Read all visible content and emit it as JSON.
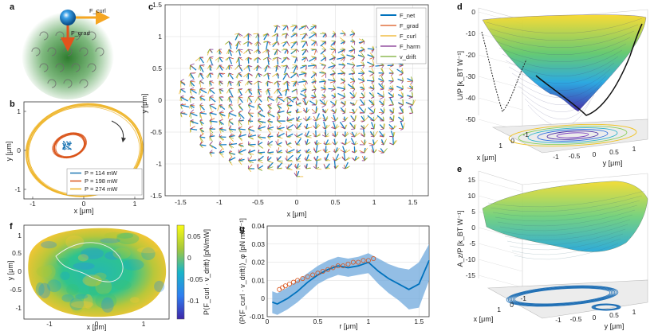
{
  "panels": {
    "a": {
      "label": "a",
      "force_labels": [
        "F_curl",
        "F_grad"
      ]
    },
    "b": {
      "label": "b",
      "xlabel": "x [μm]",
      "ylabel": "y [μm]",
      "xticks": [
        "-1",
        "0",
        "1"
      ],
      "yticks": [
        "1",
        "0",
        "-1"
      ],
      "legend": [
        {
          "text": "P = 114 mW",
          "color": "#1f77b4"
        },
        {
          "text": "P = 198 mW",
          "color": "#d95319"
        },
        {
          "text": "P = 274 mW",
          "color": "#edb120"
        }
      ]
    },
    "c": {
      "label": "c",
      "xlabel": "x [μm]",
      "ylabel": "y [μm]",
      "xticks": [
        "-1.5",
        "-1",
        "-0.5",
        "0",
        "0.5",
        "1",
        "1.5"
      ],
      "yticks": [
        "1.5",
        "1",
        "0.5",
        "0",
        "-0.5",
        "-1",
        "-1.5"
      ],
      "legend": [
        {
          "text": "F_net",
          "color": "#0072bd"
        },
        {
          "text": "F_grad",
          "color": "#d95319"
        },
        {
          "text": "F_curl",
          "color": "#edb120"
        },
        {
          "text": "F_harm",
          "color": "#7e2f8e"
        },
        {
          "text": "v_drift",
          "color": "#77ac30"
        }
      ]
    },
    "d": {
      "label": "d",
      "zlabel": "U/P [k_BT W⁻¹]",
      "zticks": [
        "0",
        "-10",
        "-20",
        "-30",
        "-40",
        "-50"
      ],
      "xlabel": "x [μm]",
      "ylabel": "y [μm]",
      "xticks": [
        "1",
        "0",
        "-1"
      ],
      "yticks": [
        "-1",
        "-0.5",
        "0",
        "0.5",
        "1"
      ]
    },
    "e": {
      "label": "e",
      "zlabel": "A_z/P [k_BT W⁻¹]",
      "zticks": [
        "15",
        "10",
        "5",
        "0",
        "-5",
        "-10",
        "-15"
      ],
      "xlabel": "x [μm]",
      "ylabel": "y [μm]",
      "xticks": [
        "1",
        "0",
        "-1"
      ],
      "yticks": [
        "-1",
        "-0.5",
        "0",
        "0.5",
        "1"
      ]
    },
    "f": {
      "label": "f",
      "xlabel": "x [μm]",
      "ylabel": "y [μm]",
      "xticks": [
        "-1",
        "0",
        "1"
      ],
      "yticks": [
        "1",
        "0.5",
        "0",
        "-0.5",
        "-1"
      ],
      "cbar_ticks": [
        "0.05",
        "0",
        "-0.05",
        "-0.1"
      ],
      "cbar_label": "P⟨F_curl · v_drift⟩ [pN/mW]"
    },
    "g": {
      "label": "g",
      "xlabel": "r [μm]",
      "ylabel": "⟨P⟨F_curl · v_drift⟩⟩_φ [pN mW⁻¹]",
      "xticks": [
        "0",
        "0.5",
        "1",
        "1.5"
      ],
      "yticks": [
        "0.04",
        "0.03",
        "0.02",
        "0.01",
        "0",
        "-0.01"
      ]
    }
  },
  "chart_data": [
    {
      "type": "line",
      "panel": "g",
      "title": "",
      "xlabel": "r [μm]",
      "ylabel": "⟨P⟨F_curl · v_drift⟩⟩_φ [pN mW⁻¹]",
      "xlim": [
        0,
        1.6
      ],
      "ylim": [
        -0.01,
        0.04
      ],
      "series": [
        {
          "name": "mean",
          "color": "#0072bd",
          "x": [
            0.05,
            0.1,
            0.2,
            0.3,
            0.4,
            0.5,
            0.6,
            0.7,
            0.8,
            0.9,
            1.0,
            1.1,
            1.2,
            1.3,
            1.4,
            1.5,
            1.6
          ],
          "values": [
            -0.002,
            -0.003,
            0.0,
            0.004,
            0.009,
            0.013,
            0.016,
            0.018,
            0.017,
            0.018,
            0.02,
            0.015,
            0.011,
            0.008,
            0.005,
            0.008,
            0.021
          ]
        },
        {
          "name": "band_upper",
          "color": "#6fa8dc",
          "x": [
            0.05,
            0.1,
            0.2,
            0.3,
            0.4,
            0.5,
            0.6,
            0.7,
            0.8,
            0.9,
            1.0,
            1.1,
            1.2,
            1.3,
            1.4,
            1.5,
            1.6
          ],
          "values": [
            0.004,
            0.003,
            0.006,
            0.01,
            0.014,
            0.018,
            0.021,
            0.023,
            0.022,
            0.023,
            0.025,
            0.022,
            0.019,
            0.017,
            0.016,
            0.02,
            0.03
          ]
        },
        {
          "name": "band_lower",
          "color": "#6fa8dc",
          "x": [
            0.05,
            0.1,
            0.2,
            0.3,
            0.4,
            0.5,
            0.6,
            0.7,
            0.8,
            0.9,
            1.0,
            1.1,
            1.2,
            1.3,
            1.4,
            1.5,
            1.6
          ],
          "values": [
            -0.008,
            -0.009,
            -0.006,
            -0.002,
            0.003,
            0.008,
            0.011,
            0.013,
            0.012,
            0.013,
            0.014,
            0.008,
            0.003,
            -0.001,
            -0.006,
            -0.005,
            0.01
          ]
        },
        {
          "name": "theory",
          "color": "#d95319",
          "x": [
            0.12,
            0.15,
            0.18,
            0.22,
            0.26,
            0.3,
            0.35,
            0.4,
            0.45,
            0.5,
            0.55,
            0.6,
            0.65,
            0.7,
            0.75,
            0.8,
            0.85,
            0.9,
            0.95,
            1.0,
            1.05
          ],
          "values": [
            0.005,
            0.006,
            0.007,
            0.008,
            0.009,
            0.01,
            0.011,
            0.012,
            0.013,
            0.014,
            0.015,
            0.016,
            0.017,
            0.018,
            0.018,
            0.019,
            0.02,
            0.02,
            0.021,
            0.021,
            0.022
          ]
        }
      ]
    }
  ]
}
